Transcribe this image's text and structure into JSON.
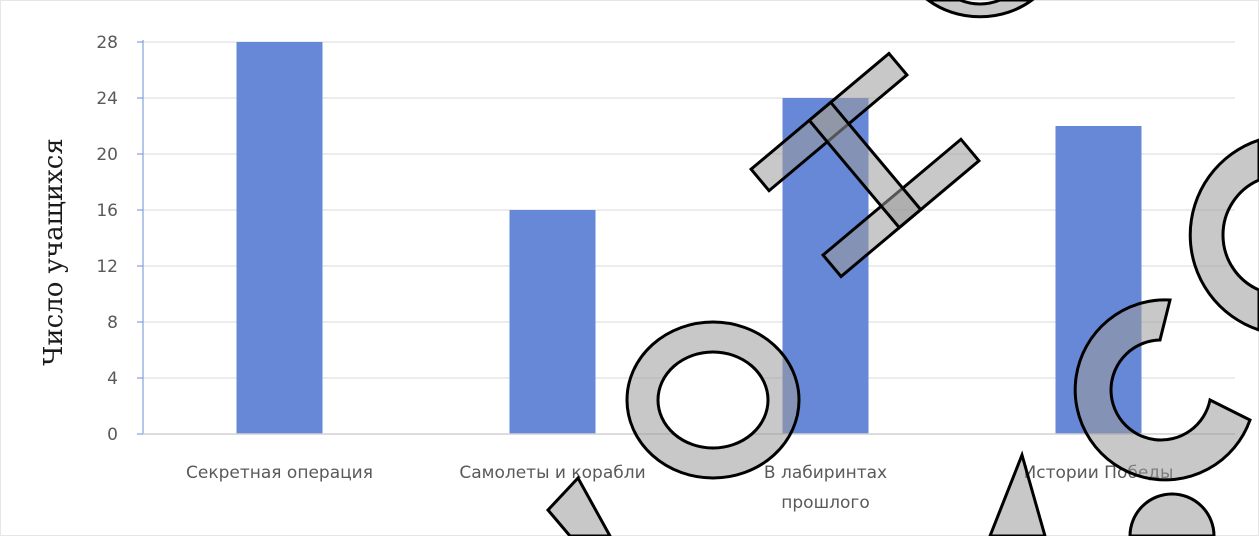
{
  "chart_data": {
    "type": "bar",
    "title": "",
    "xlabel": "",
    "ylabel": "Число учащихся",
    "categories": [
      [
        "Секретная операция"
      ],
      [
        "Самолеты и корабли"
      ],
      [
        "В лабиринтах",
        "прошлого"
      ],
      [
        "Истории Победы"
      ]
    ],
    "values": [
      28,
      16,
      24,
      22
    ],
    "ylim": [
      0,
      28
    ],
    "yticks": [
      0,
      4,
      8,
      12,
      16,
      20,
      24,
      28
    ],
    "grid": true,
    "legend": "none",
    "bar_color": "#6688d6"
  },
  "watermark": {
    "text": "Ноннон",
    "color": "#b0b0b0"
  }
}
